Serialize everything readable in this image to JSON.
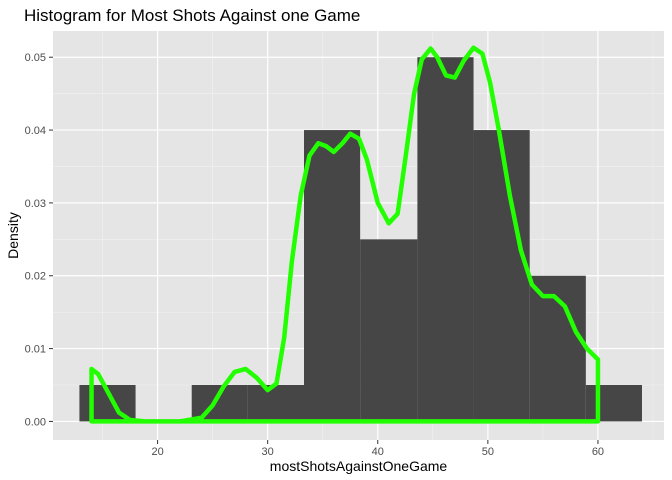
{
  "chart_data": {
    "type": "bar",
    "title": "Histogram for Most Shots Against one Game",
    "xlabel": "mostShotsAgainstOneGame",
    "ylabel": "Density",
    "xlim": [
      10.5,
      66
    ],
    "ylim": [
      -0.00255,
      0.0536
    ],
    "x_ticks": [
      20,
      30,
      40,
      50,
      60
    ],
    "x_tick_labels": [
      "20",
      "30",
      "40",
      "50",
      "60"
    ],
    "y_ticks": [
      0.0,
      0.01,
      0.02,
      0.03,
      0.04,
      0.05
    ],
    "y_tick_labels": [
      "0.00",
      "0.01",
      "0.02",
      "0.03",
      "0.04",
      "0.05"
    ],
    "grid": true,
    "background": "#e5e5e5",
    "bar_color": "#464646",
    "density_color": "#22ff00",
    "bins": [
      {
        "x0": 12.9,
        "x1": 18.0,
        "density": 0.005
      },
      {
        "x0": 23.1,
        "x1": 28.2,
        "density": 0.005
      },
      {
        "x0": 28.2,
        "x1": 33.3,
        "density": 0.005
      },
      {
        "x0": 33.3,
        "x1": 38.4,
        "density": 0.04
      },
      {
        "x0": 38.4,
        "x1": 43.6,
        "density": 0.025
      },
      {
        "x0": 43.6,
        "x1": 48.7,
        "density": 0.05
      },
      {
        "x0": 48.7,
        "x1": 53.8,
        "density": 0.04
      },
      {
        "x0": 53.8,
        "x1": 58.9,
        "density": 0.02
      },
      {
        "x0": 58.9,
        "x1": 64.0,
        "density": 0.005
      }
    ],
    "density_curve": {
      "x": [
        14,
        14,
        14.6,
        15.5,
        16.5,
        17.5,
        19,
        22,
        24,
        25,
        26,
        27,
        28,
        29,
        30,
        30.8,
        31.5,
        32.2,
        33,
        33.8,
        34.6,
        35.3,
        36,
        36.8,
        37.5,
        38.3,
        39,
        40,
        41,
        41.8,
        42.5,
        43.3,
        44,
        44.8,
        45.4,
        46.2,
        47,
        47.8,
        48.7,
        49.5,
        50.2,
        51,
        52,
        53,
        54,
        55,
        56,
        57,
        58,
        59,
        60,
        60,
        14
      ],
      "y": [
        0,
        0.0072,
        0.0065,
        0.004,
        0.0012,
        0.0002,
        0,
        0,
        0.0005,
        0.0022,
        0.0048,
        0.0068,
        0.0072,
        0.006,
        0.0043,
        0.0052,
        0.0115,
        0.022,
        0.031,
        0.0365,
        0.0382,
        0.0378,
        0.037,
        0.0382,
        0.0395,
        0.0388,
        0.036,
        0.03,
        0.0272,
        0.0285,
        0.036,
        0.045,
        0.0497,
        0.0512,
        0.05,
        0.0475,
        0.0472,
        0.0495,
        0.0513,
        0.0505,
        0.0465,
        0.04,
        0.031,
        0.0235,
        0.0188,
        0.0172,
        0.0172,
        0.0158,
        0.0123,
        0.01,
        0.0085,
        0,
        0
      ]
    }
  }
}
